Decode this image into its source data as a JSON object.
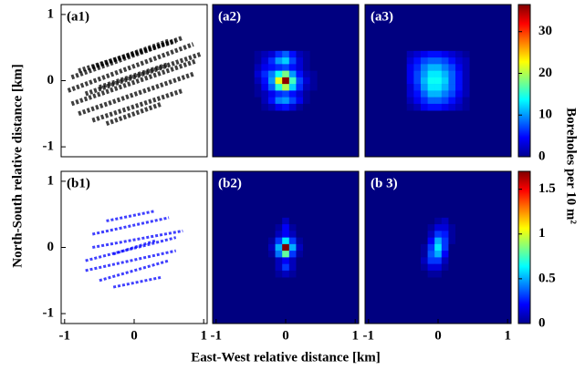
{
  "figure": {
    "xlabel": "East-West relative distance [km]",
    "ylabel": "North-South relative distance [km]"
  },
  "chart_data": [
    {
      "type": "scatter",
      "label": "(a1)",
      "color": "#000000",
      "segments": [
        [
          -0.95,
          -0.15,
          0.85,
          0.55
        ],
        [
          -0.9,
          -0.35,
          0.9,
          0.3
        ],
        [
          -0.8,
          -0.5,
          0.85,
          0.1
        ],
        [
          -0.6,
          -0.6,
          0.7,
          -0.15
        ],
        [
          -0.9,
          0.05,
          0.7,
          0.65
        ],
        [
          -0.6,
          0.2,
          0.5,
          0.6
        ],
        [
          -0.7,
          -0.2,
          0.95,
          0.4
        ],
        [
          -0.4,
          -0.65,
          0.4,
          -0.35
        ],
        [
          -0.8,
          0.15,
          0.6,
          0.6
        ],
        [
          -0.5,
          -0.1,
          0.5,
          0.25
        ]
      ],
      "xlim": [
        -1.05,
        1.05
      ],
      "ylim": [
        -1.15,
        1.15
      ],
      "yticks": [
        -1,
        0,
        1
      ]
    },
    {
      "type": "heatmap",
      "label": "(a2)",
      "clim": [
        0,
        36.5
      ],
      "x": [
        -0.4,
        -0.3,
        -0.2,
        -0.1,
        0,
        0.1,
        0.2,
        0.3,
        0.4
      ],
      "y": [
        0.4,
        0.3,
        0.2,
        0.1,
        0,
        -0.1,
        -0.2,
        -0.3,
        -0.4
      ],
      "z": [
        [
          1,
          2,
          3,
          6,
          8,
          5,
          2,
          1,
          0
        ],
        [
          1,
          3,
          6,
          10,
          12,
          7,
          3,
          1,
          0
        ],
        [
          2,
          4,
          5,
          6,
          7,
          5,
          3,
          1,
          0
        ],
        [
          3,
          6,
          9,
          14,
          18,
          10,
          5,
          2,
          1
        ],
        [
          2,
          5,
          10,
          22,
          36,
          16,
          7,
          3,
          1
        ],
        [
          1,
          4,
          8,
          15,
          20,
          12,
          6,
          2,
          1
        ],
        [
          1,
          2,
          4,
          6,
          7,
          5,
          3,
          1,
          0
        ],
        [
          0,
          2,
          5,
          9,
          10,
          7,
          4,
          1,
          0
        ],
        [
          0,
          1,
          2,
          4,
          5,
          3,
          1,
          0,
          0
        ]
      ],
      "xlim": [
        -1.05,
        1.05
      ],
      "ylim": [
        -1.15,
        1.15
      ]
    },
    {
      "type": "heatmap",
      "label": "(a3)",
      "clim": [
        0,
        36.5
      ],
      "x": [
        -0.4,
        -0.3,
        -0.2,
        -0.1,
        0,
        0.1,
        0.2,
        0.3,
        0.4
      ],
      "y": [
        0.4,
        0.3,
        0.2,
        0.1,
        0,
        -0.1,
        -0.2,
        -0.3,
        -0.4
      ],
      "z": [
        [
          2,
          3,
          4,
          5,
          5,
          4,
          3,
          2,
          1
        ],
        [
          3,
          5,
          7,
          8,
          8,
          7,
          5,
          3,
          2
        ],
        [
          4,
          6,
          9,
          11,
          11,
          9,
          7,
          4,
          2
        ],
        [
          4,
          7,
          10,
          13,
          13,
          11,
          8,
          5,
          2
        ],
        [
          4,
          7,
          11,
          14,
          14,
          12,
          8,
          5,
          2
        ],
        [
          3,
          6,
          10,
          13,
          13,
          11,
          8,
          5,
          2
        ],
        [
          3,
          5,
          8,
          11,
          11,
          9,
          7,
          4,
          2
        ],
        [
          2,
          4,
          6,
          8,
          8,
          7,
          5,
          3,
          1
        ],
        [
          1,
          2,
          4,
          5,
          5,
          4,
          3,
          2,
          1
        ]
      ],
      "xlim": [
        -1.05,
        1.05
      ],
      "ylim": [
        -1.15,
        1.15
      ]
    },
    {
      "type": "colorbar",
      "label": "Boreholes per 10 m²",
      "ylim": [
        0,
        36.5
      ],
      "yticks": [
        0,
        10,
        20,
        30
      ]
    },
    {
      "type": "scatter",
      "label": "(b1)",
      "color": "#0000ff",
      "segments": [
        [
          -0.7,
          -0.2,
          0.6,
          0.15
        ],
        [
          -0.6,
          0.2,
          0.5,
          0.45
        ],
        [
          -0.5,
          -0.5,
          0.5,
          -0.2
        ],
        [
          -0.4,
          0.4,
          0.3,
          0.55
        ],
        [
          -0.6,
          0,
          0.7,
          0.25
        ],
        [
          -0.3,
          -0.6,
          0.4,
          -0.45
        ],
        [
          -0.7,
          -0.35,
          0.6,
          -0.05
        ],
        [
          -0.3,
          -0.1,
          0.3,
          0.1
        ]
      ],
      "xlim": [
        -1.05,
        1.05
      ],
      "ylim": [
        -1.15,
        1.15
      ],
      "xticks": [
        -1,
        0,
        1
      ],
      "yticks": [
        -1,
        0,
        1
      ]
    },
    {
      "type": "heatmap",
      "label": "(b2)",
      "clim": [
        0,
        1.7
      ],
      "x": [
        -0.4,
        -0.3,
        -0.2,
        -0.1,
        0,
        0.1,
        0.2,
        0.3,
        0.4
      ],
      "y": [
        0.4,
        0.3,
        0.2,
        0.1,
        0,
        -0.1,
        -0.2,
        -0.3,
        -0.4
      ],
      "z": [
        [
          0,
          0,
          0,
          0,
          0.1,
          0,
          0,
          0,
          0
        ],
        [
          0,
          0,
          0,
          0.05,
          0.2,
          0.05,
          0,
          0,
          0
        ],
        [
          0,
          0,
          0,
          0.1,
          0.2,
          0.1,
          0,
          0,
          0
        ],
        [
          0,
          0,
          0.05,
          0.3,
          0.6,
          0.3,
          0.05,
          0,
          0
        ],
        [
          0,
          0,
          0.1,
          0.5,
          1.7,
          0.5,
          0.1,
          0,
          0
        ],
        [
          0,
          0,
          0.05,
          0.4,
          0.8,
          0.3,
          0.05,
          0,
          0
        ],
        [
          0,
          0,
          0,
          0.1,
          0.2,
          0.1,
          0,
          0,
          0
        ],
        [
          0,
          0,
          0,
          0.1,
          0.3,
          0.1,
          0,
          0,
          0
        ],
        [
          0,
          0,
          0,
          0.05,
          0.1,
          0.05,
          0,
          0,
          0
        ]
      ],
      "xlim": [
        -1.05,
        1.05
      ],
      "ylim": [
        -1.15,
        1.15
      ],
      "xticks": [
        -1,
        0,
        1
      ]
    },
    {
      "type": "heatmap",
      "label": "(b 3)",
      "clim": [
        0,
        1.7
      ],
      "x": [
        -0.4,
        -0.3,
        -0.2,
        -0.1,
        0,
        0.1,
        0.2,
        0.3,
        0.4
      ],
      "y": [
        0.4,
        0.3,
        0.2,
        0.1,
        0,
        -0.1,
        -0.2,
        -0.3,
        -0.4
      ],
      "z": [
        [
          0,
          0,
          0,
          0,
          0.05,
          0.1,
          0,
          0,
          0
        ],
        [
          0,
          0,
          0,
          0.05,
          0.15,
          0.15,
          0.05,
          0,
          0
        ],
        [
          0,
          0,
          0,
          0.1,
          0.3,
          0.25,
          0.05,
          0,
          0
        ],
        [
          0,
          0,
          0,
          0.2,
          0.5,
          0.3,
          0.05,
          0,
          0
        ],
        [
          0,
          0,
          0.05,
          0.3,
          0.6,
          0.3,
          0,
          0,
          0
        ],
        [
          0,
          0,
          0.05,
          0.35,
          0.5,
          0.2,
          0,
          0,
          0
        ],
        [
          0,
          0,
          0.1,
          0.3,
          0.3,
          0.1,
          0,
          0,
          0
        ],
        [
          0,
          0,
          0.05,
          0.15,
          0.15,
          0.05,
          0,
          0,
          0
        ],
        [
          0,
          0,
          0,
          0.05,
          0.05,
          0,
          0,
          0,
          0
        ]
      ],
      "xlim": [
        -1.05,
        1.05
      ],
      "ylim": [
        -1.15,
        1.15
      ],
      "xticks": [
        -1,
        0,
        1
      ]
    },
    {
      "type": "colorbar",
      "ylim": [
        0,
        1.7
      ],
      "yticks": [
        0,
        0.5,
        1,
        1.5
      ]
    }
  ]
}
